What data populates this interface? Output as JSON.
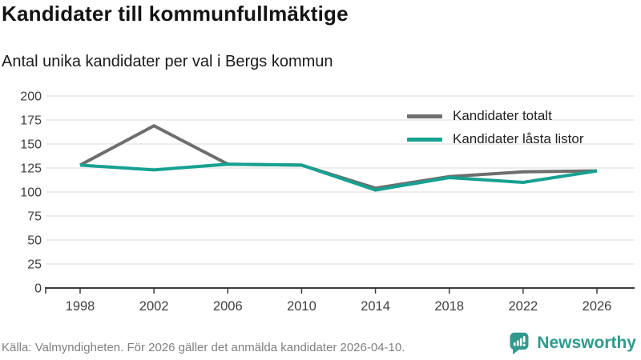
{
  "header": {
    "title": "Kandidater till kommunfullmäktige",
    "subtitle": "Antal unika kandidater per val i Bergs kommun"
  },
  "chart_data": {
    "type": "line",
    "x": [
      1998,
      2002,
      2006,
      2010,
      2014,
      2018,
      2022,
      2026
    ],
    "series": [
      {
        "name": "Kandidater totalt",
        "color": "#6e6e6e",
        "values": [
          128,
          169,
          129,
          128,
          104,
          116,
          121,
          122
        ]
      },
      {
        "name": "Kandidater låsta listor",
        "color": "#16a192",
        "values": [
          128,
          123,
          129,
          128,
          102,
          115,
          110,
          122
        ]
      }
    ],
    "ylim": [
      0,
      200
    ],
    "ytick_step": 25,
    "yticks": [
      0,
      25,
      50,
      75,
      100,
      125,
      150,
      175,
      200
    ],
    "grid": "horizontal",
    "legend_position": "top-right",
    "xlabel": "",
    "ylabel": ""
  },
  "footer": {
    "source": "Källa: Valmyndigheten. För 2026 gäller det anmälda kandidater 2026-04-10."
  },
  "logo": {
    "text": "Newsworthy",
    "icon": "bar-chart-speech-bubble",
    "color": "#2f9a8d"
  },
  "style_colors": {
    "grid": "#e4e4e4",
    "axis": "#3a3a3a",
    "tick_label": "#404040"
  }
}
